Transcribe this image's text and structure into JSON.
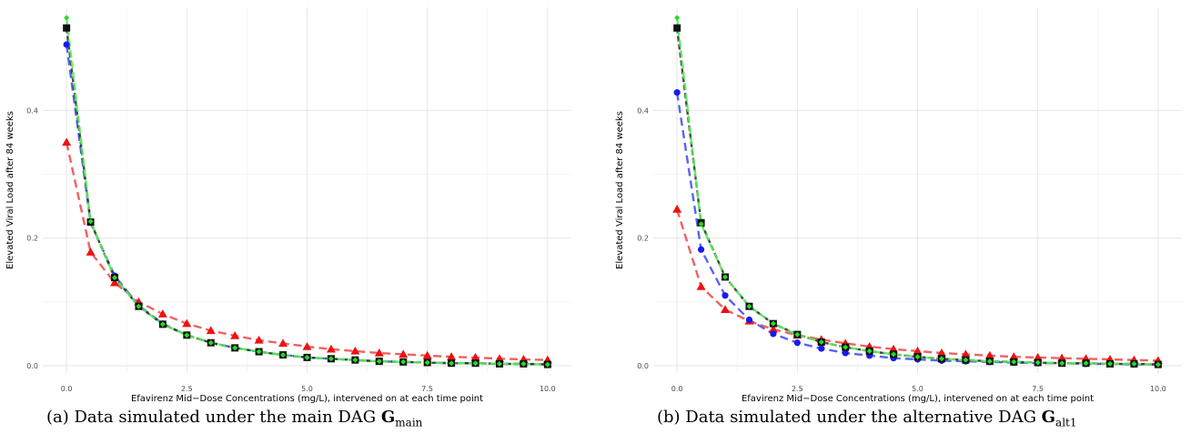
{
  "chart_data": [
    {
      "type": "line",
      "panel": "a",
      "xlabel": "Efavirenz Mid−Dose Concentrations (mg/L), intervened on at each time point",
      "ylabel": "Elevated Viral Load after 84 weeks",
      "xlim": [
        0,
        10
      ],
      "ylim": [
        0,
        0.55
      ],
      "x_ticks": [
        "0.0",
        "2.5",
        "5.0",
        "7.5",
        "10.0"
      ],
      "y_ticks": [
        "0.0",
        "0.2",
        "0.4"
      ],
      "grid": true,
      "legend": "none",
      "x": [
        0,
        0.5,
        1,
        1.5,
        2,
        2.5,
        3,
        3.5,
        4,
        4.5,
        5,
        5.5,
        6,
        6.5,
        7,
        7.5,
        8,
        8.5,
        9,
        9.5,
        10
      ],
      "series": [
        {
          "color": "#ff0000",
          "marker": "triangle",
          "values": [
            0.35,
            0.178,
            0.13,
            0.1,
            0.081,
            0.066,
            0.055,
            0.047,
            0.04,
            0.035,
            0.03,
            0.026,
            0.023,
            0.02,
            0.018,
            0.016,
            0.014,
            0.013,
            0.011,
            0.01,
            0.009
          ]
        },
        {
          "color": "#00cc00",
          "marker": "diamond",
          "values": [
            0.545,
            0.226,
            0.138,
            0.093,
            0.065,
            0.048,
            0.036,
            0.028,
            0.022,
            0.017,
            0.013,
            0.011,
            0.009,
            0.007,
            0.006,
            0.005,
            0.004,
            0.004,
            0.003,
            0.003,
            0.002
          ]
        },
        {
          "color": "#000000",
          "marker": "square",
          "values": [
            0.529,
            0.225,
            0.138,
            0.093,
            0.065,
            0.048,
            0.036,
            0.028,
            0.022,
            0.017,
            0.013,
            0.011,
            0.009,
            0.007,
            0.006,
            0.005,
            0.004,
            0.004,
            0.003,
            0.003,
            0.002
          ]
        },
        {
          "color": "#0000ff",
          "marker": "circle",
          "values": [
            0.503,
            0.224,
            0.141,
            0.094,
            0.066,
            0.048,
            0.036,
            0.028,
            0.022,
            0.017,
            0.013,
            0.011,
            0.009,
            0.007,
            0.006,
            0.005,
            0.004,
            0.004,
            0.003,
            0.003,
            0.002
          ]
        }
      ]
    },
    {
      "type": "line",
      "panel": "b",
      "xlabel": "Efavirenz Mid−Dose Concentrations (mg/L), intervened on at each time point",
      "ylabel": "Elevated Viral Load after 84 weeks",
      "xlim": [
        0,
        10
      ],
      "ylim": [
        0,
        0.55
      ],
      "x_ticks": [
        "0.0",
        "2.5",
        "5.0",
        "7.5",
        "10.0"
      ],
      "y_ticks": [
        "0.0",
        "0.2",
        "0.4"
      ],
      "grid": true,
      "legend": "none",
      "x": [
        0,
        0.5,
        1,
        1.5,
        2,
        2.5,
        3,
        3.5,
        4,
        4.5,
        5,
        5.5,
        6,
        6.5,
        7,
        7.5,
        8,
        8.5,
        9,
        9.5,
        10
      ],
      "series": [
        {
          "color": "#ff0000",
          "marker": "triangle",
          "values": [
            0.245,
            0.124,
            0.088,
            0.07,
            0.057,
            0.048,
            0.041,
            0.035,
            0.03,
            0.026,
            0.023,
            0.02,
            0.018,
            0.016,
            0.014,
            0.013,
            0.012,
            0.011,
            0.01,
            0.009,
            0.008
          ]
        },
        {
          "color": "#00cc00",
          "marker": "diamond",
          "values": [
            0.545,
            0.222,
            0.139,
            0.093,
            0.066,
            0.049,
            0.037,
            0.029,
            0.023,
            0.018,
            0.014,
            0.011,
            0.009,
            0.007,
            0.006,
            0.005,
            0.004,
            0.004,
            0.003,
            0.003,
            0.002
          ]
        },
        {
          "color": "#000000",
          "marker": "square",
          "values": [
            0.529,
            0.224,
            0.139,
            0.093,
            0.066,
            0.049,
            0.037,
            0.029,
            0.023,
            0.018,
            0.014,
            0.011,
            0.009,
            0.007,
            0.006,
            0.005,
            0.004,
            0.004,
            0.003,
            0.003,
            0.002
          ]
        },
        {
          "color": "#0000ff",
          "marker": "circle",
          "values": [
            0.428,
            0.182,
            0.11,
            0.072,
            0.05,
            0.036,
            0.027,
            0.02,
            0.016,
            0.012,
            0.01,
            0.008,
            0.007,
            0.006,
            0.005,
            0.004,
            0.004,
            0.003,
            0.003,
            0.002,
            0.002
          ]
        }
      ]
    }
  ],
  "captions": {
    "a": {
      "prefix": "(a) Data simulated under the main DAG ",
      "symbol": "G",
      "subscript": "main"
    },
    "b": {
      "prefix": "(b) Data simulated under the alternative DAG ",
      "symbol": "G",
      "subscript": "alt1"
    }
  }
}
